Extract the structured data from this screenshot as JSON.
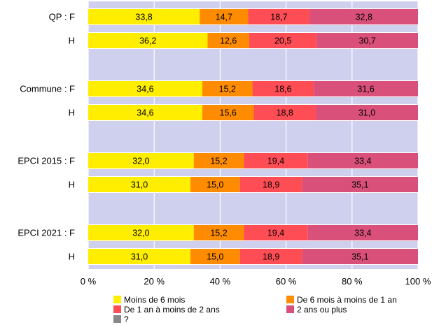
{
  "chart_data": {
    "type": "bar",
    "orientation": "horizontal",
    "stacked": true,
    "title": "",
    "xlabel": "",
    "ylabel": "",
    "xlim": [
      0,
      100
    ],
    "x_ticks": [
      "0 %",
      "20 %",
      "40 %",
      "60 %",
      "80 %",
      "100 %"
    ],
    "grid": true,
    "legend_position": "bottom",
    "groups": [
      {
        "bars": [
          {
            "label": "QP : F",
            "values": [
              33.8,
              14.7,
              18.7,
              32.8
            ]
          },
          {
            "label": "H",
            "values": [
              36.2,
              12.6,
              20.5,
              30.7
            ]
          }
        ]
      },
      {
        "bars": [
          {
            "label": "Commune : F",
            "values": [
              34.6,
              15.2,
              18.6,
              31.6
            ]
          },
          {
            "label": "H",
            "values": [
              34.6,
              15.6,
              18.8,
              31.0
            ]
          }
        ]
      },
      {
        "bars": [
          {
            "label": "EPCI 2015 : F",
            "values": [
              32.0,
              15.2,
              19.4,
              33.4
            ]
          },
          {
            "label": "H",
            "values": [
              31.0,
              15.0,
              18.9,
              35.1
            ]
          }
        ]
      },
      {
        "bars": [
          {
            "label": "EPCI 2021 : F",
            "values": [
              32.0,
              15.2,
              19.4,
              33.4
            ]
          },
          {
            "label": "H",
            "values": [
              31.0,
              15.0,
              18.9,
              35.1
            ]
          }
        ]
      }
    ],
    "series": [
      {
        "name": "Moins de 6 mois",
        "color": "#ffee00"
      },
      {
        "name": "De 6 mois à moins de 1 an",
        "color": "#ff8c00"
      },
      {
        "name": "De 1 an à moins de 2 ans",
        "color": "#ff4d55"
      },
      {
        "name": "2 ans ou plus",
        "color": "#d9507a"
      },
      {
        "name": "?",
        "color": "#888888"
      }
    ],
    "colors": {
      "plot_background": "#cfd0ee",
      "gridline": "#ffffff"
    }
  }
}
